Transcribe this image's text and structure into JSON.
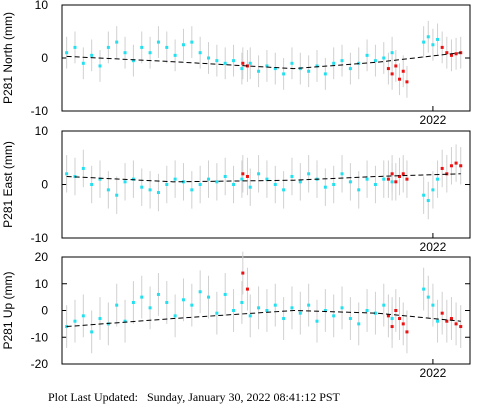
{
  "chart_data": [
    {
      "type": "scatter",
      "ylabel": "P281 North (mm)",
      "xlim": [
        2018,
        2022.4
      ],
      "xticks": [
        2022
      ],
      "ylim": [
        -10,
        10
      ],
      "yticks": [
        -10,
        0,
        10
      ],
      "series": [
        {
          "color": "#22e0f0",
          "error": 3,
          "x": [
            2018.05,
            2018.14,
            2018.23,
            2018.32,
            2018.41,
            2018.5,
            2018.59,
            2018.68,
            2018.77,
            2018.86,
            2018.95,
            2019.04,
            2019.13,
            2019.22,
            2019.31,
            2019.4,
            2019.49,
            2019.58,
            2019.67,
            2019.76,
            2019.85,
            2019.94,
            2020.03,
            2020.12,
            2020.21,
            2020.3,
            2020.39,
            2020.48,
            2020.57,
            2020.66,
            2020.75,
            2020.84,
            2020.93,
            2021.02,
            2021.11,
            2021.2,
            2021.29,
            2021.38,
            2021.47,
            2021.56,
            2021.9,
            2021.95,
            2022.0,
            2022.05
          ],
          "values": [
            1,
            2,
            -1,
            0.5,
            -1.5,
            2,
            3,
            1,
            -0.5,
            2,
            1,
            3,
            2,
            0.5,
            2.5,
            3,
            1,
            0,
            -0.5,
            -1,
            -0.5,
            -2,
            -1,
            -2.5,
            -1.5,
            -2,
            -3,
            -1,
            -2,
            -2.5,
            -1.5,
            -3,
            -1,
            -0.5,
            -2,
            -1,
            0.5,
            -0.5,
            0,
            1,
            3,
            4,
            2.5,
            3.5
          ]
        },
        {
          "color": "#ee1111",
          "error": 3,
          "x": [
            2019.95,
            2020.0,
            2021.52,
            2021.56,
            2021.6,
            2021.64,
            2021.68,
            2021.72,
            2022.1,
            2022.15,
            2022.2,
            2022.25,
            2022.3
          ],
          "values": [
            -1,
            -1.5,
            -2,
            -3,
            -1.5,
            -4,
            -2.5,
            -4.5,
            2,
            1,
            0.5,
            0.8,
            1
          ]
        }
      ],
      "trend": {
        "color": "#000000",
        "x": [
          2018.05,
          2019.2,
          2020.5,
          2021.4,
          2022.3
        ],
        "values": [
          0.3,
          -0.7,
          -2,
          -0.8,
          1
        ]
      }
    },
    {
      "type": "scatter",
      "ylabel": "P281 East (mm)",
      "xlim": [
        2018,
        2022.4
      ],
      "xticks": [
        2022
      ],
      "ylim": [
        -10,
        10
      ],
      "yticks": [
        -10,
        0,
        10
      ],
      "series": [
        {
          "color": "#22e0f0",
          "error": 3.5,
          "x": [
            2018.05,
            2018.14,
            2018.23,
            2018.32,
            2018.41,
            2018.5,
            2018.59,
            2018.68,
            2018.77,
            2018.86,
            2018.95,
            2019.04,
            2019.13,
            2019.22,
            2019.31,
            2019.4,
            2019.49,
            2019.58,
            2019.67,
            2019.76,
            2019.85,
            2019.94,
            2020.03,
            2020.12,
            2020.21,
            2020.3,
            2020.39,
            2020.48,
            2020.57,
            2020.66,
            2020.75,
            2020.84,
            2020.93,
            2021.02,
            2021.11,
            2021.2,
            2021.29,
            2021.38,
            2021.47,
            2021.56,
            2021.9,
            2021.95,
            2022.0,
            2022.05
          ],
          "values": [
            2,
            1.5,
            3,
            0,
            1,
            -1,
            -2,
            0.5,
            1,
            -0.5,
            -1,
            -1.5,
            0,
            1,
            0.5,
            -1,
            0,
            1,
            0.5,
            1.5,
            0,
            1,
            -0.5,
            2,
            1,
            0,
            -1,
            1.5,
            0.5,
            2,
            1,
            -0.5,
            0,
            2,
            0.5,
            -1,
            1,
            0,
            1,
            0.5,
            -2,
            -3,
            -1,
            1
          ]
        },
        {
          "color": "#ee1111",
          "error": 3.5,
          "x": [
            2019.95,
            2020.0,
            2021.52,
            2021.56,
            2021.6,
            2021.64,
            2021.68,
            2021.72,
            2022.1,
            2022.15,
            2022.2,
            2022.25,
            2022.3
          ],
          "values": [
            2,
            1.5,
            1,
            2,
            0.5,
            1.5,
            2,
            1,
            3,
            2,
            3.5,
            4,
            3.5
          ]
        }
      ],
      "trend": {
        "color": "#000000",
        "x": [
          2018.05,
          2019.2,
          2020.5,
          2021.4,
          2022.3
        ],
        "values": [
          1.5,
          0.5,
          0.8,
          1.5,
          2
        ]
      }
    },
    {
      "type": "scatter",
      "ylabel": "P281 Up (mm)",
      "xlim": [
        2018,
        2022.4
      ],
      "xticks": [
        2022
      ],
      "ylim": [
        -20,
        20
      ],
      "yticks": [
        -20,
        -10,
        0,
        10,
        20
      ],
      "series": [
        {
          "color": "#22e0f0",
          "error": 8,
          "x": [
            2018.05,
            2018.14,
            2018.23,
            2018.32,
            2018.41,
            2018.5,
            2018.59,
            2018.68,
            2018.77,
            2018.86,
            2018.95,
            2019.04,
            2019.13,
            2019.22,
            2019.31,
            2019.4,
            2019.49,
            2019.58,
            2019.67,
            2019.76,
            2019.85,
            2019.94,
            2020.03,
            2020.12,
            2020.21,
            2020.3,
            2020.39,
            2020.48,
            2020.57,
            2020.66,
            2020.75,
            2020.84,
            2020.93,
            2021.02,
            2021.11,
            2021.2,
            2021.29,
            2021.38,
            2021.47,
            2021.56,
            2021.9,
            2021.95,
            2022.0,
            2022.05
          ],
          "values": [
            -6,
            -4,
            -2,
            -8,
            -3,
            -5,
            2,
            -4,
            3,
            5,
            1,
            6,
            3,
            -2,
            4,
            2,
            7,
            5,
            -1,
            6,
            0,
            3,
            -2,
            1,
            0,
            2,
            -3,
            1,
            -1,
            2,
            -4,
            0,
            -2,
            1,
            -3,
            -5,
            0,
            -1,
            2,
            -3,
            8,
            5,
            2,
            -4
          ]
        },
        {
          "color": "#ee1111",
          "error": 8,
          "x": [
            2019.95,
            2020.0,
            2021.52,
            2021.56,
            2021.6,
            2021.64,
            2021.68,
            2021.72,
            2022.1,
            2022.15,
            2022.2,
            2022.25,
            2022.3
          ],
          "values": [
            14,
            8,
            -2,
            -6,
            0,
            -3,
            -5,
            -8,
            -1,
            -4,
            -3,
            -5,
            -6
          ]
        }
      ],
      "trend": {
        "color": "#000000",
        "x": [
          2018.05,
          2019.2,
          2020.5,
          2021.4,
          2022.3
        ],
        "values": [
          -6,
          -3,
          0,
          -1,
          -4
        ]
      }
    }
  ],
  "footer": "Plot Last Updated:   Sunday, January 30, 2022 08:41:12 PST"
}
